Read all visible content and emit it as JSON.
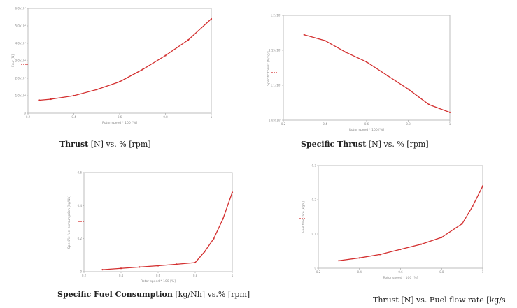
{
  "captions": [
    {
      "bold": "Thrust",
      "rest": " [N] vs. % [rpm]"
    },
    {
      "bold": "Specific Thrust",
      "rest": " [N] vs. % [rpm]"
    },
    {
      "bold": "Specific Fuel Consumption",
      "rest": " [kg/Nh] vs.% [rpm]"
    },
    {
      "bold": "",
      "rest": "Thrust [N] vs. Fuel flow rate [kg/s"
    }
  ],
  "colors": {
    "series": "#d32f2f",
    "frame": "#bdbdbd",
    "text": "#222222"
  },
  "chart_data": [
    {
      "type": "line",
      "title": "Thrust [N] vs. % [rpm]",
      "xlabel": "Rotor speed * 100 [%]",
      "ylabel": "Fcur [N]",
      "xlim": [
        0.2,
        1.0
      ],
      "ylim": [
        0,
        60000
      ],
      "xticks": [
        "0.2",
        "0.4",
        "0.6",
        "0.8",
        "1"
      ],
      "yticks": [
        "0",
        "1.0x10⁴",
        "2.0x10⁴",
        "3.0x10⁴",
        "4.0x10⁴",
        "5.0x10⁴",
        "6.0x10⁴"
      ],
      "series": [
        {
          "x": [
            0.25,
            0.3,
            0.4,
            0.5,
            0.6,
            0.7,
            0.8,
            0.9,
            1.0
          ],
          "y": [
            7400,
            8000,
            10000,
            13500,
            18000,
            25000,
            33000,
            42000,
            54000
          ]
        }
      ]
    },
    {
      "type": "line",
      "title": "Specific Thrust [N] vs. % [rpm]",
      "xlabel": "Rotor speed * 100 [%]",
      "ylabel": "Specific thrust [N/kg/s]",
      "xlim": [
        0.2,
        1.0
      ],
      "ylim": [
        0.95,
        1.22
      ],
      "xticks": [
        "0.2",
        "0.4",
        "0.6",
        "0.8",
        "1"
      ],
      "yticks": [
        "1.05x10³",
        "1.1x10³",
        "1.15x10³",
        "1.2x10³"
      ],
      "series": [
        {
          "x": [
            0.3,
            0.4,
            0.5,
            0.6,
            0.7,
            0.8,
            0.9,
            1.0
          ],
          "y": [
            1.17,
            1.155,
            1.125,
            1.1,
            1.065,
            1.03,
            0.99,
            0.97
          ]
        }
      ]
    },
    {
      "type": "line",
      "title": "Specific Fuel Consumption [kg/Nh] vs.% [rpm]",
      "xlabel": "Rotor speed * 100 [%]",
      "ylabel": "Specific fuel consumption [kg/Nh]",
      "xlim": [
        0.2,
        1.0
      ],
      "ylim": [
        0,
        0.6
      ],
      "xticks": [
        "0.2",
        "0.4",
        "0.6",
        "0.8",
        "1"
      ],
      "yticks": [
        "0",
        "0.2",
        "0.4",
        "0.6"
      ],
      "series": [
        {
          "x": [
            0.3,
            0.4,
            0.5,
            0.6,
            0.7,
            0.8,
            0.85,
            0.9,
            0.95,
            1.0
          ],
          "y": [
            0.012,
            0.02,
            0.028,
            0.036,
            0.045,
            0.055,
            0.12,
            0.2,
            0.32,
            0.48
          ]
        }
      ]
    },
    {
      "type": "line",
      "title": "Thrust [N] vs. Fuel flow rate [kg/s",
      "xlabel": "Rotor speed * 100 [%]",
      "ylabel": "Fuel flow rate [kg/s]",
      "xlim": [
        0.2,
        1.0
      ],
      "ylim": [
        0,
        0.3
      ],
      "xticks": [
        "0.2",
        "0.4",
        "0.6",
        "0.8",
        "1"
      ],
      "yticks": [
        "0",
        "0.1",
        "0.2",
        "0.3"
      ],
      "series": [
        {
          "x": [
            0.3,
            0.4,
            0.5,
            0.6,
            0.7,
            0.8,
            0.9,
            0.95,
            1.0
          ],
          "y": [
            0.022,
            0.03,
            0.04,
            0.055,
            0.07,
            0.09,
            0.13,
            0.18,
            0.24
          ]
        }
      ]
    }
  ]
}
